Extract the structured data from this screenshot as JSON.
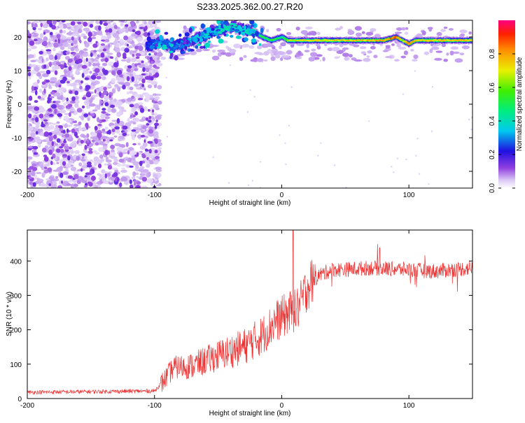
{
  "chart_data": [
    {
      "type": "heatmap",
      "title": "S233.2025.362.00.27.R20",
      "xlabel": "Height of straight line (km)",
      "ylabel": "Frequency (Hz)",
      "xlim": [
        -200,
        150
      ],
      "ylim": [
        -25,
        25
      ],
      "xticks": [
        -200,
        -100,
        0,
        100
      ],
      "xtick_labels": [
        "-200",
        "-100",
        "0",
        "100"
      ],
      "yticks": [
        -20,
        -10,
        0,
        10,
        20
      ],
      "ytick_labels": [
        "-20",
        "-10",
        "0",
        "10",
        "20"
      ],
      "colorbar": {
        "label": "Normalized spectral amplitude",
        "range": [
          0,
          1
        ],
        "ticks": [
          0.0,
          0.2,
          0.4,
          0.6,
          0.8
        ],
        "tick_labels": [
          "0.0",
          "0.2",
          "0.4",
          "0.6",
          "0.8"
        ]
      },
      "signal_track": {
        "x": [
          -105,
          -95,
          -85,
          -75,
          -65,
          -55,
          -45,
          -38,
          -30,
          -22,
          -15,
          -8,
          0,
          5,
          20,
          60,
          80,
          90,
          95,
          100,
          105,
          150
        ],
        "y": [
          17.5,
          18.5,
          17.0,
          18.5,
          19.5,
          21.5,
          22.5,
          23.0,
          22.0,
          21.5,
          20.0,
          19.0,
          20.0,
          19.0,
          19.0,
          19.0,
          19.0,
          20.0,
          19.0,
          18.0,
          19.0,
          19.0
        ],
        "amplitude": [
          0.25,
          0.35,
          0.3,
          0.35,
          0.4,
          0.4,
          0.45,
          0.45,
          0.4,
          0.5,
          0.55,
          0.6,
          0.5,
          0.7,
          0.75,
          0.8,
          0.85,
          0.95,
          0.7,
          0.9,
          0.8,
          0.8
        ]
      },
      "noise_region_xmax": -100
    },
    {
      "type": "line",
      "xlabel": "Height of straight line (km)",
      "ylabel": "SNR (10 * v/v)",
      "xlim": [
        -200,
        150
      ],
      "ylim": [
        0,
        490
      ],
      "xticks": [
        -200,
        -100,
        0,
        100
      ],
      "xtick_labels": [
        "-200",
        "-100",
        "0",
        "100"
      ],
      "yticks": [
        0,
        100,
        200,
        300,
        400
      ],
      "ytick_labels": [
        "0",
        "100",
        "200",
        "300",
        "400"
      ],
      "color": "#ee3333",
      "trend": {
        "x": [
          -200,
          -150,
          -100,
          -92,
          -85,
          -70,
          -50,
          -30,
          -15,
          -5,
          0,
          5,
          10,
          15,
          20,
          25,
          30,
          40,
          50,
          70,
          100,
          120,
          150
        ],
        "y": [
          18,
          20,
          22,
          55,
          90,
          95,
          125,
          150,
          185,
          225,
          235,
          250,
          250,
          275,
          325,
          345,
          360,
          375,
          375,
          380,
          375,
          370,
          380
        ]
      },
      "spike": {
        "x": 9,
        "y": 490
      }
    }
  ]
}
